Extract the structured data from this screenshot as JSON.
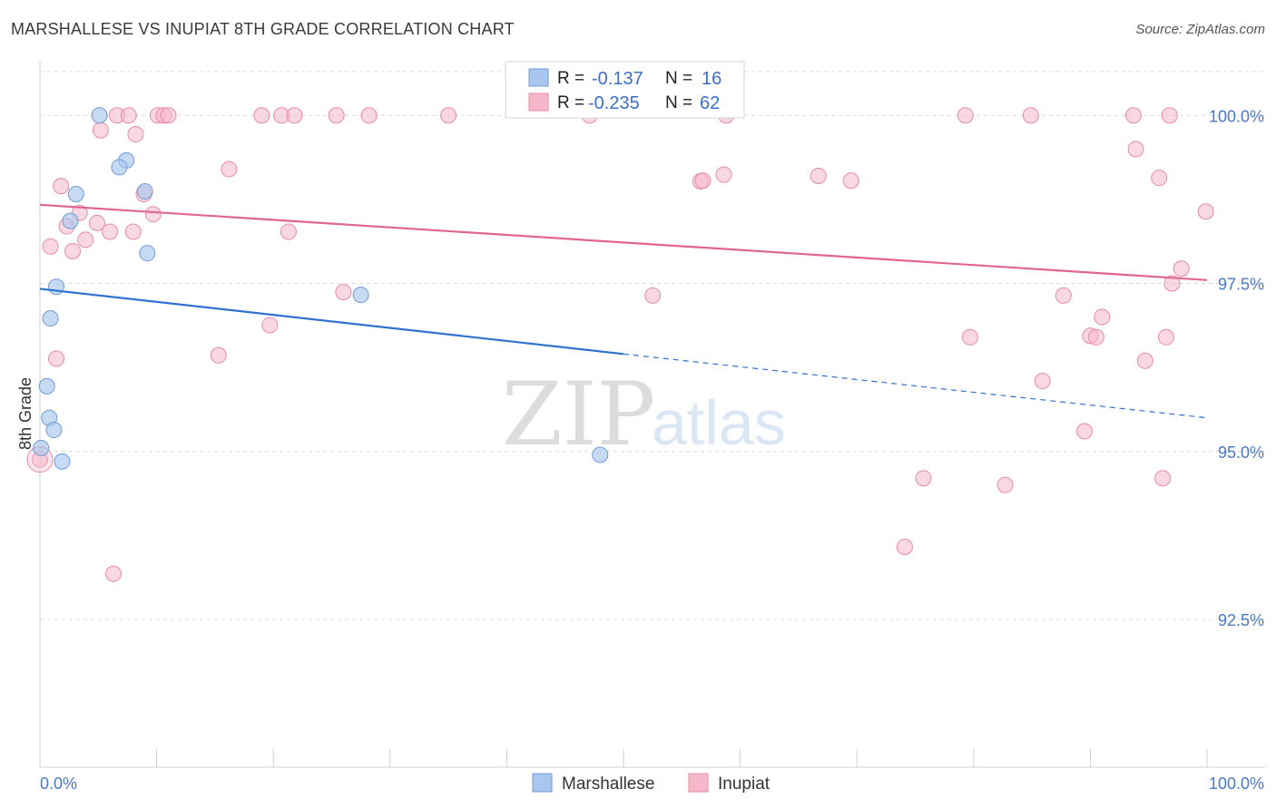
{
  "title": "MARSHALLESE VS INUPIAT 8TH GRADE CORRELATION CHART",
  "source": "Source: ZipAtlas.com",
  "watermark": {
    "zip": "ZIP",
    "atlas": "atlas"
  },
  "colors": {
    "blue": "#a9c6ee",
    "blue_stroke": "#6f9bd8",
    "blue_line": "#2f72d0",
    "pink": "#f5b8cb",
    "pink_stroke": "#e88aa8",
    "pink_line": "#e0658f",
    "grid": "#d9d9d9",
    "axis_label": "#4a78c8"
  },
  "legend_top": {
    "rows": [
      {
        "r_label": "R =",
        "r_value": "-0.137",
        "n_label": "N =",
        "n_value": "16"
      },
      {
        "r_label": "R =",
        "r_value": "-0.235",
        "n_label": "N =",
        "n_value": "62"
      }
    ]
  },
  "chart_data": {
    "type": "scatter",
    "title": "MARSHALLESE VS INUPIAT 8TH GRADE CORRELATION CHART",
    "xlabel": "",
    "ylabel": "8th Grade",
    "xlim": [
      0,
      100
    ],
    "ylim": [
      90.3,
      100.8
    ],
    "x_tick_labels": [
      "0.0%",
      "100.0%"
    ],
    "y_ticks": [
      {
        "value": 100.0,
        "label": "100.0%"
      },
      {
        "value": 97.5,
        "label": "97.5%"
      },
      {
        "value": 95.0,
        "label": "95.0%"
      },
      {
        "value": 92.5,
        "label": "92.5%"
      }
    ],
    "legend": [
      "Marshallese",
      "Inupiat"
    ],
    "series": [
      {
        "name": "Marshallese",
        "color": "#a9c6ee",
        "R": -0.137,
        "N": 16,
        "trend": {
          "x0": 0,
          "y0": 97.42,
          "x1": 50,
          "y1": 96.45,
          "dashed_to_x": 100,
          "dashed_to_y": 95.5
        },
        "points": [
          [
            5.1,
            100.0
          ],
          [
            7.4,
            99.33
          ],
          [
            6.8,
            99.23
          ],
          [
            3.1,
            98.83
          ],
          [
            9.0,
            98.87
          ],
          [
            2.6,
            98.43
          ],
          [
            9.2,
            97.95
          ],
          [
            1.4,
            97.45
          ],
          [
            27.5,
            97.33
          ],
          [
            0.9,
            96.98
          ],
          [
            0.6,
            95.97
          ],
          [
            0.8,
            95.5
          ],
          [
            1.2,
            95.32
          ],
          [
            0.1,
            95.05
          ],
          [
            1.9,
            94.85
          ],
          [
            48.0,
            94.95
          ]
        ]
      },
      {
        "name": "Inupiat",
        "color": "#f5b8cb",
        "R": -0.235,
        "N": 62,
        "trend": {
          "x0": 0,
          "y0": 98.67,
          "x1": 100,
          "y1": 97.55
        },
        "points": [
          [
            6.6,
            100.0
          ],
          [
            7.6,
            100.0
          ],
          [
            10.1,
            100.0
          ],
          [
            10.6,
            100.0
          ],
          [
            11.0,
            100.0
          ],
          [
            19.0,
            100.0
          ],
          [
            20.7,
            100.0
          ],
          [
            21.8,
            100.0
          ],
          [
            25.4,
            100.0
          ],
          [
            28.2,
            100.0
          ],
          [
            35.0,
            100.0
          ],
          [
            47.1,
            100.0
          ],
          [
            58.8,
            100.0
          ],
          [
            79.3,
            100.0
          ],
          [
            84.9,
            100.0
          ],
          [
            93.7,
            100.0
          ],
          [
            96.8,
            100.0
          ],
          [
            5.2,
            99.78
          ],
          [
            8.2,
            99.72
          ],
          [
            16.2,
            99.2
          ],
          [
            1.8,
            98.95
          ],
          [
            8.9,
            98.83
          ],
          [
            56.6,
            99.02
          ],
          [
            56.8,
            99.03
          ],
          [
            58.6,
            99.12
          ],
          [
            66.7,
            99.1
          ],
          [
            69.5,
            99.03
          ],
          [
            93.9,
            99.5
          ],
          [
            95.9,
            99.07
          ],
          [
            99.9,
            98.57
          ],
          [
            3.4,
            98.55
          ],
          [
            4.9,
            98.4
          ],
          [
            9.7,
            98.53
          ],
          [
            2.3,
            98.35
          ],
          [
            6.0,
            98.27
          ],
          [
            8.0,
            98.27
          ],
          [
            21.3,
            98.27
          ],
          [
            0.9,
            98.05
          ],
          [
            2.8,
            97.98
          ],
          [
            3.9,
            98.15
          ],
          [
            26.0,
            97.37
          ],
          [
            52.5,
            97.32
          ],
          [
            87.7,
            97.32
          ],
          [
            97.8,
            97.72
          ],
          [
            97.0,
            97.5
          ],
          [
            91.0,
            97.0
          ],
          [
            19.7,
            96.88
          ],
          [
            79.7,
            96.7
          ],
          [
            90.0,
            96.72
          ],
          [
            96.5,
            96.7
          ],
          [
            1.4,
            96.38
          ],
          [
            15.3,
            96.43
          ],
          [
            94.7,
            96.35
          ],
          [
            85.9,
            96.05
          ],
          [
            89.5,
            95.3
          ],
          [
            75.7,
            94.6
          ],
          [
            82.7,
            94.5
          ],
          [
            96.2,
            94.6
          ],
          [
            74.1,
            93.58
          ],
          [
            6.3,
            93.18
          ],
          [
            0.0,
            94.88
          ],
          [
            90.5,
            96.7
          ]
        ]
      }
    ]
  }
}
